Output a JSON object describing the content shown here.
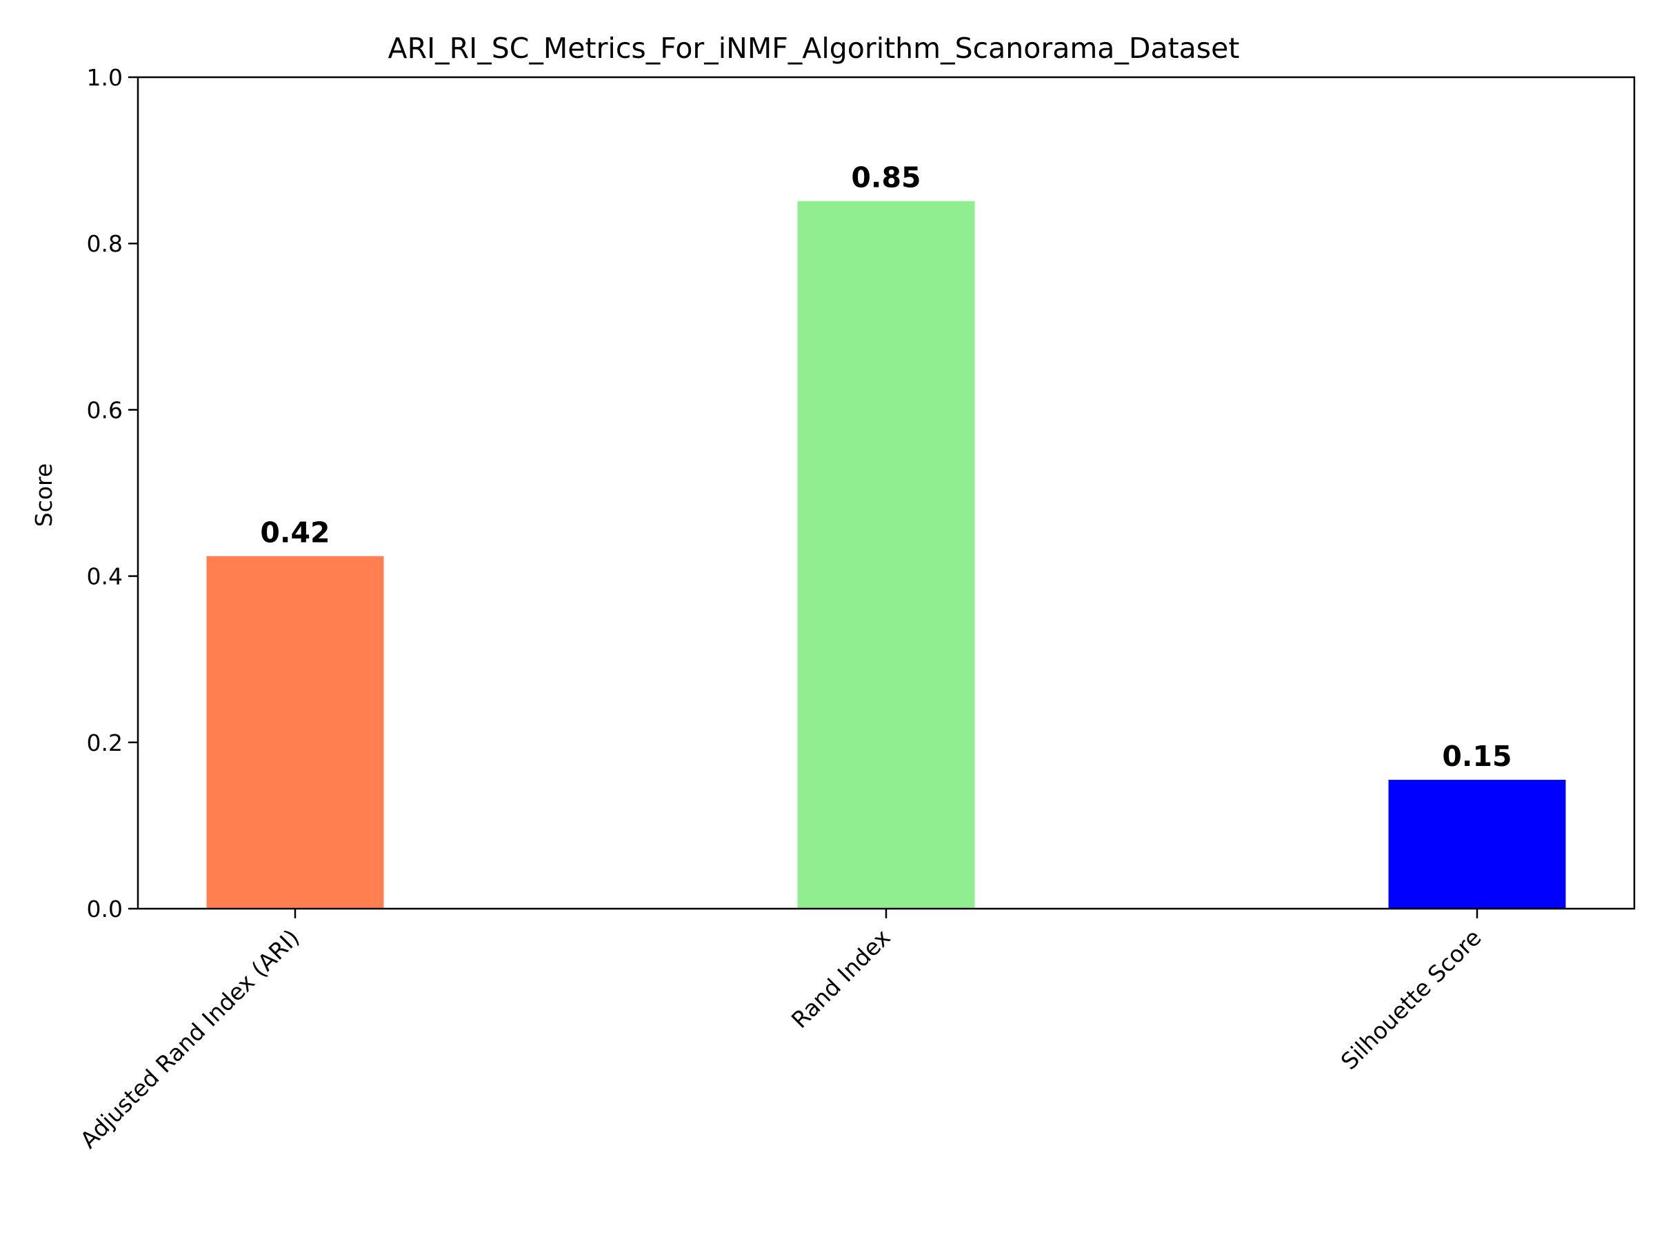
{
  "chart_data": {
    "type": "bar",
    "title": "ARI_RI_SC_Metrics_For_iNMF_Algorithm_Scanorama_Dataset",
    "xlabel": "",
    "ylabel": "Score",
    "ylim": [
      0,
      1.0
    ],
    "yticks": [
      "0.0",
      "0.2",
      "0.4",
      "0.6",
      "0.8",
      "1.0"
    ],
    "categories": [
      "Adjusted Rand Index (ARI)",
      "Rand Index",
      "Silhouette Score"
    ],
    "values": [
      0.424,
      0.851,
      0.155
    ],
    "value_labels": [
      "0.42",
      "0.85",
      "0.15"
    ],
    "colors": [
      "#ff7f50",
      "#90ee90",
      "#0000ff"
    ],
    "grid": false,
    "legend": "none"
  }
}
